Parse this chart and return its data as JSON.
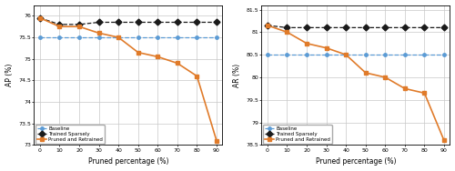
{
  "x": [
    0,
    10,
    20,
    30,
    40,
    50,
    60,
    70,
    80,
    90
  ],
  "ap_baseline": 75.5,
  "ap_trained_sparsely": [
    75.95,
    75.8,
    75.8,
    75.85,
    75.85,
    75.85,
    75.85,
    75.85,
    75.85,
    75.85
  ],
  "ap_pruned_retrained": [
    75.95,
    75.75,
    75.75,
    75.6,
    75.5,
    75.15,
    75.05,
    74.9,
    74.6,
    73.1
  ],
  "ar_baseline": 80.5,
  "ar_trained_sparsely": [
    81.15,
    81.1,
    81.1,
    81.1,
    81.1,
    81.1,
    81.1,
    81.1,
    81.1,
    81.1
  ],
  "ar_pruned_retrained": [
    81.15,
    81.0,
    80.75,
    80.65,
    80.5,
    80.1,
    80.0,
    79.75,
    79.65,
    78.6
  ],
  "ap_ylim": [
    73.0,
    76.25
  ],
  "ap_yticks": [
    73.0,
    73.5,
    74.0,
    74.5,
    75.0,
    75.5,
    76.0
  ],
  "ap_yticklabels": [
    "73",
    "73.5",
    "74",
    "74.5",
    "75",
    "75.5",
    "76"
  ],
  "ar_ylim": [
    78.5,
    81.6
  ],
  "ar_yticks": [
    78.5,
    79.0,
    79.5,
    80.0,
    80.5,
    81.0,
    81.5
  ],
  "ar_yticklabels": [
    "78.5",
    "79",
    "79.5",
    "80",
    "80.5",
    "81",
    "81.5"
  ],
  "xlabel": "Pruned percentage (%)",
  "ap_ylabel": "AP (%)",
  "ar_ylabel": "AR (%)",
  "baseline_color": "#5b9bd5",
  "trained_sparsely_color": "#1a1a1a",
  "pruned_retrained_color": "#e07b2a",
  "legend_labels": [
    "Baseline",
    "Trained Sparsely",
    "Pruned and Retrained"
  ],
  "background_color": "#ffffff",
  "grid_color": "#c8c8c8"
}
